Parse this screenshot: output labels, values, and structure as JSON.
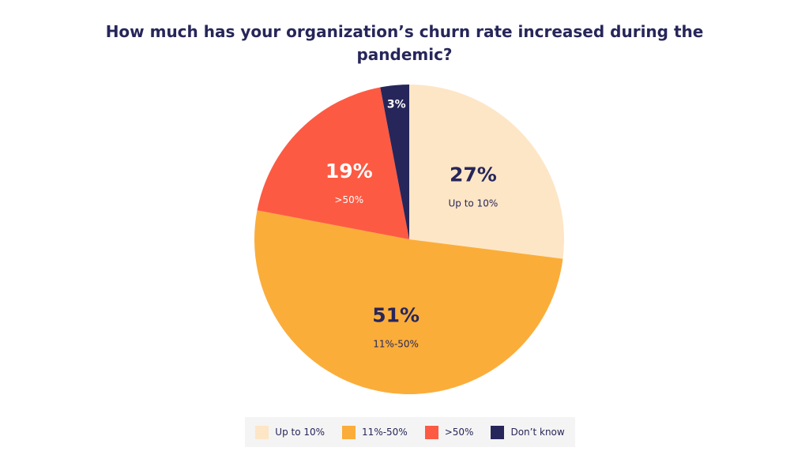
{
  "chart_data": {
    "type": "pie",
    "title": "How much has your organization’s churn rate increased during the pandemic?",
    "categories": [
      "Up to 10%",
      "11%-50%",
      ">50%",
      "Don’t know"
    ],
    "values": [
      27,
      51,
      19,
      3
    ],
    "value_labels": [
      "27%",
      "51%",
      "19%",
      "3%"
    ],
    "slice_inner_labels": [
      "Up to 10%",
      "11%-50%",
      ">50%",
      ""
    ],
    "colors": [
      "#fde6c6",
      "#fbad3a",
      "#fd5a43",
      "#27265a"
    ],
    "label_colors": [
      "#27265a",
      "#27265a",
      "#ffffff",
      "#ffffff"
    ],
    "start": "12 o'clock",
    "direction": "clockwise",
    "legend": {
      "position": "bottom",
      "items": [
        "Up to 10%",
        "11%-50%",
        ">50%",
        "Don’t know"
      ]
    }
  }
}
